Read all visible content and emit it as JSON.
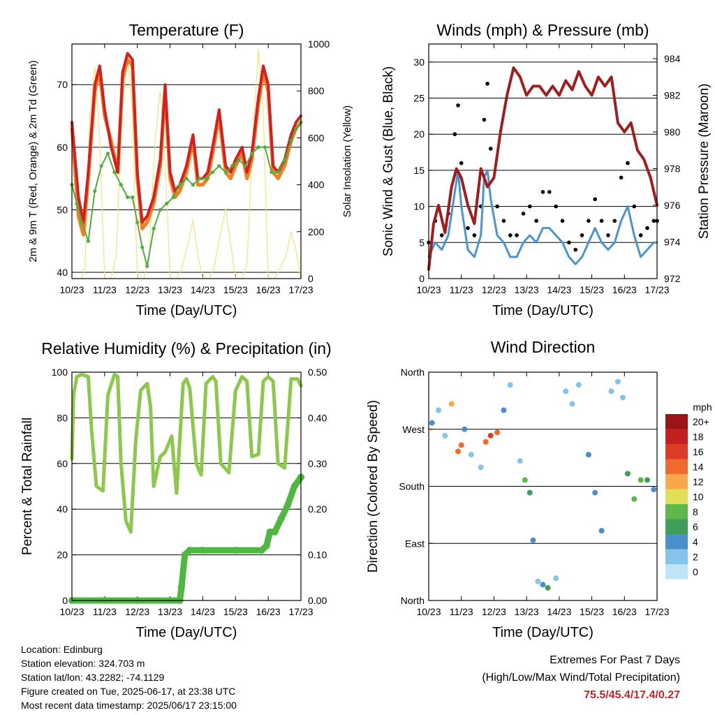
{
  "figure": {
    "time_ticks": [
      "10/23",
      "11/23",
      "12/23",
      "13/23",
      "14/23",
      "15/23",
      "16/23",
      "17/23"
    ],
    "time_label": "Time (Day/UTC)"
  },
  "colors": {
    "temp_2m": "#f08020",
    "temp_9m": "#d42020",
    "dewpoint": "#4fae3f",
    "solar": "#f7e27a",
    "gust": "#000000",
    "wind": "#4a94d0",
    "pressure": "#a01e1e",
    "rh": "#8cc84a",
    "precip": "#4fb841",
    "extremes_text": "#c0282b"
  },
  "chart_data": [
    {
      "id": "temperature",
      "type": "line",
      "title": "Temperature (F)",
      "xlabel": "Time (Day/UTC)",
      "ylabel": "2m & 9m T (Red, Orange) & 2m Td (Green)",
      "ylabel_right": "Solar Insolation (Yellow)",
      "x_ticks": [
        "10/23",
        "11/23",
        "12/23",
        "13/23",
        "14/23",
        "15/23",
        "16/23",
        "17/23"
      ],
      "y_ticks": [
        40,
        50,
        60,
        70
      ],
      "ylim": [
        39,
        76.5
      ],
      "y2_ticks": [
        0,
        200,
        400,
        600,
        800,
        1000
      ],
      "y2lim": [
        0,
        1000
      ],
      "grid": "horizontal",
      "series": [
        {
          "name": "9m T",
          "x": [
            0,
            0.1,
            0.2,
            0.35,
            0.5,
            0.7,
            0.85,
            1.0,
            1.2,
            1.4,
            1.55,
            1.7,
            1.85,
            2.0,
            2.15,
            2.3,
            2.5,
            2.7,
            2.85,
            3.0,
            3.15,
            3.3,
            3.5,
            3.7,
            3.85,
            4.0,
            4.15,
            4.3,
            4.5,
            4.7,
            4.85,
            5.0,
            5.2,
            5.35,
            5.5,
            5.7,
            5.85,
            6.0,
            6.15,
            6.3,
            6.5,
            6.7,
            6.85,
            7.0
          ],
          "y": [
            64,
            58,
            52,
            48,
            56,
            70,
            73,
            66,
            60,
            56,
            72,
            75,
            74,
            56,
            48,
            49,
            52,
            58,
            70,
            56,
            53,
            54,
            57,
            62,
            55,
            55,
            56,
            60,
            66,
            57,
            56,
            58,
            60,
            56,
            59,
            68,
            73,
            70,
            57,
            56,
            58,
            62,
            64,
            65
          ]
        },
        {
          "name": "2m T",
          "x": [
            0,
            0.1,
            0.2,
            0.35,
            0.5,
            0.7,
            0.85,
            1.0,
            1.2,
            1.4,
            1.55,
            1.7,
            1.85,
            2.0,
            2.15,
            2.3,
            2.5,
            2.7,
            2.85,
            3.0,
            3.15,
            3.3,
            3.5,
            3.7,
            3.85,
            4.0,
            4.15,
            4.3,
            4.5,
            4.7,
            4.85,
            5.0,
            5.2,
            5.35,
            5.5,
            5.7,
            5.85,
            6.0,
            6.15,
            6.3,
            6.5,
            6.7,
            6.85,
            7.0
          ],
          "y": [
            63,
            56,
            49,
            46,
            55,
            69,
            72,
            65,
            61,
            56,
            71,
            74,
            73,
            55,
            47,
            48,
            51,
            57,
            69,
            55,
            52,
            53,
            56,
            61,
            54,
            54,
            55,
            59,
            65,
            56,
            55,
            57,
            59,
            55,
            58,
            67,
            72,
            69,
            56,
            55,
            57,
            61,
            63,
            64
          ]
        },
        {
          "name": "2m Td",
          "x": [
            0,
            0.15,
            0.3,
            0.5,
            0.7,
            0.9,
            1.1,
            1.3,
            1.5,
            1.7,
            1.85,
            2.0,
            2.15,
            2.3,
            2.5,
            2.7,
            2.9,
            3.1,
            3.3,
            3.5,
            3.7,
            3.9,
            4.1,
            4.3,
            4.5,
            4.7,
            4.9,
            5.1,
            5.3,
            5.5,
            5.7,
            5.9,
            6.1,
            6.3,
            6.5,
            6.7,
            6.85,
            7.0
          ],
          "y": [
            54,
            51,
            48,
            45,
            53,
            57,
            59,
            56,
            54,
            52,
            52,
            48,
            44,
            41,
            47,
            50,
            51,
            52,
            54,
            55,
            54,
            55,
            55,
            56,
            57,
            56,
            57,
            58,
            57,
            59,
            60,
            60,
            56,
            56,
            58,
            61,
            63,
            64
          ]
        },
        {
          "name": "Solar Insolation",
          "axis": "right",
          "x": [
            0,
            0.1,
            0.2,
            0.3,
            0.4,
            0.55,
            0.7,
            0.85,
            1.0,
            1.1,
            1.2,
            1.35,
            1.55,
            1.7,
            1.85,
            2.0,
            2.1,
            2.2,
            2.35,
            2.55,
            2.7,
            2.85,
            3.0,
            3.1,
            3.2,
            3.35,
            3.55,
            3.7,
            3.85,
            4.0,
            4.1,
            4.2,
            4.35,
            4.55,
            4.7,
            4.85,
            5.0,
            5.1,
            5.2,
            5.35,
            5.55,
            5.7,
            5.85,
            6.0,
            6.1,
            6.2,
            6.35,
            6.55,
            6.7,
            6.85,
            7.0
          ],
          "y": [
            0,
            0,
            0,
            0,
            50,
            700,
            900,
            600,
            0,
            0,
            0,
            100,
            750,
            950,
            700,
            0,
            0,
            0,
            80,
            600,
            800,
            500,
            0,
            0,
            0,
            40,
            150,
            250,
            100,
            0,
            0,
            0,
            50,
            200,
            300,
            150,
            0,
            0,
            0,
            60,
            650,
            980,
            700,
            0,
            0,
            0,
            40,
            100,
            200,
            120,
            0
          ]
        }
      ]
    },
    {
      "id": "winds",
      "type": "scatter",
      "title": "Winds (mph) & Pressure (mb)",
      "xlabel": "Time (Day/UTC)",
      "ylabel": "Sonic Wind & Gust (Blue, Black)",
      "ylabel_right": "Station Pressure (Maroon)",
      "x_ticks": [
        "10/23",
        "11/23",
        "12/23",
        "13/23",
        "14/23",
        "15/23",
        "16/23",
        "17/23"
      ],
      "y_ticks": [
        0,
        5,
        10,
        15,
        20,
        25,
        30
      ],
      "ylim": [
        0,
        32.5
      ],
      "y2_ticks": [
        972,
        974,
        976,
        978,
        980,
        982,
        984
      ],
      "y2lim": [
        972,
        984.8
      ],
      "grid": "horizontal",
      "series": [
        {
          "name": "Gust",
          "x": [
            0,
            0.2,
            0.4,
            0.6,
            0.8,
            0.9,
            1.0,
            1.2,
            1.4,
            1.6,
            1.7,
            1.8,
            1.9,
            2.1,
            2.3,
            2.5,
            2.7,
            2.9,
            3.1,
            3.3,
            3.5,
            3.7,
            3.9,
            4.1,
            4.3,
            4.5,
            4.7,
            4.9,
            5.1,
            5.3,
            5.5,
            5.7,
            5.9,
            6.1,
            6.3,
            6.5,
            6.7,
            6.9,
            7.0
          ],
          "y": [
            5,
            8,
            6,
            9,
            20,
            24,
            16,
            7,
            6,
            10,
            22,
            27,
            18,
            10,
            8,
            6,
            6,
            9,
            10,
            8,
            12,
            12,
            10,
            8,
            5,
            4,
            6,
            8,
            11,
            8,
            6,
            8,
            14,
            16,
            10,
            6,
            7,
            8,
            8
          ]
        },
        {
          "name": "Sonic Wind",
          "x": [
            0,
            0.2,
            0.4,
            0.6,
            0.8,
            0.9,
            1.0,
            1.2,
            1.4,
            1.6,
            1.7,
            1.8,
            1.9,
            2.1,
            2.3,
            2.5,
            2.7,
            2.9,
            3.1,
            3.3,
            3.5,
            3.7,
            3.9,
            4.1,
            4.3,
            4.5,
            4.7,
            4.9,
            5.1,
            5.3,
            5.5,
            5.7,
            5.9,
            6.1,
            6.3,
            6.5,
            6.7,
            6.9,
            7.0
          ],
          "y": [
            3,
            5,
            4,
            6,
            12,
            15,
            10,
            4,
            3,
            6,
            14,
            15,
            11,
            6,
            5,
            3,
            3,
            5,
            6,
            5,
            7,
            7,
            6,
            5,
            3,
            2,
            3,
            5,
            7,
            5,
            4,
            5,
            8,
            10,
            6,
            3,
            4,
            5,
            5
          ]
        },
        {
          "name": "Station Pressure",
          "axis": "right",
          "x": [
            0,
            0.15,
            0.3,
            0.5,
            0.7,
            0.85,
            1.0,
            1.2,
            1.4,
            1.6,
            1.8,
            2.0,
            2.2,
            2.4,
            2.6,
            2.8,
            3.0,
            3.2,
            3.4,
            3.6,
            3.8,
            4.0,
            4.2,
            4.4,
            4.6,
            4.8,
            5.0,
            5.2,
            5.4,
            5.6,
            5.8,
            6.0,
            6.2,
            6.4,
            6.6,
            6.8,
            7.0
          ],
          "y": [
            972.5,
            975,
            976,
            974.5,
            977,
            978,
            977.5,
            976,
            975,
            978,
            977,
            977.5,
            980,
            982,
            983.5,
            983,
            982,
            982.5,
            982.5,
            982,
            982.5,
            982,
            982.8,
            982.3,
            983.3,
            982.5,
            982,
            983,
            982.5,
            983,
            980.5,
            980,
            980.5,
            979,
            978.5,
            977.5,
            976
          ]
        }
      ]
    },
    {
      "id": "humidity",
      "type": "line",
      "title": "Relative Humidity (%) & Precipitation (in)",
      "xlabel": "Time (Day/UTC)",
      "ylabel": "Percent & Total Rainfall",
      "x_ticks": [
        "10/23",
        "11/23",
        "12/23",
        "13/23",
        "14/23",
        "15/23",
        "16/23",
        "17/23"
      ],
      "y_ticks": [
        0,
        20,
        40,
        60,
        80,
        100
      ],
      "ylim": [
        0,
        100
      ],
      "y2_ticks": [
        "0.00",
        "0.10",
        "0.20",
        "0.30",
        "0.40",
        "0.50"
      ],
      "y2lim": [
        0,
        0.5
      ],
      "grid": "horizontal",
      "series": [
        {
          "name": "Relative Humidity",
          "x": [
            0,
            0.05,
            0.15,
            0.3,
            0.5,
            0.6,
            0.75,
            0.95,
            1.1,
            1.3,
            1.4,
            1.5,
            1.65,
            1.8,
            1.95,
            2.1,
            2.3,
            2.4,
            2.5,
            2.7,
            2.85,
            3.05,
            3.2,
            3.4,
            3.5,
            3.6,
            3.8,
            3.95,
            4.1,
            4.3,
            4.4,
            4.55,
            4.8,
            5.0,
            5.2,
            5.35,
            5.5,
            5.7,
            5.85,
            6.0,
            6.15,
            6.3,
            6.5,
            6.7,
            6.9,
            7.0
          ],
          "y": [
            62,
            90,
            98,
            99,
            98,
            75,
            50,
            48,
            90,
            99,
            98,
            60,
            35,
            30,
            70,
            92,
            95,
            85,
            50,
            63,
            65,
            72,
            47,
            95,
            97,
            93,
            60,
            55,
            95,
            98,
            96,
            60,
            56,
            92,
            98,
            96,
            63,
            64,
            96,
            98,
            96,
            60,
            58,
            97,
            97,
            94
          ]
        },
        {
          "name": "Total Precipitation",
          "axis": "right",
          "x": [
            0,
            1,
            2,
            3.3,
            3.35,
            3.45,
            3.6,
            4,
            5,
            5.8,
            5.95,
            6.05,
            6.2,
            6.4,
            6.6,
            6.8,
            7.0
          ],
          "y": [
            0,
            0,
            0,
            0,
            0.03,
            0.1,
            0.11,
            0.11,
            0.11,
            0.11,
            0.12,
            0.15,
            0.15,
            0.18,
            0.21,
            0.25,
            0.27
          ]
        }
      ]
    },
    {
      "id": "direction",
      "type": "scatter",
      "title": "Wind Direction",
      "xlabel": "Time (Day/UTC)",
      "ylabel": "Direction (Colored By Speed)",
      "x_ticks": [
        "10/23",
        "11/23",
        "12/23",
        "13/23",
        "14/23",
        "15/23",
        "16/23",
        "17/23"
      ],
      "y_ticks": [
        "North",
        "East",
        "South",
        "West",
        "North"
      ],
      "y_tick_values": [
        0,
        90,
        180,
        270,
        360
      ],
      "ylim": [
        0,
        360
      ],
      "grid": "horizontal",
      "colorbar": {
        "title": "mph",
        "labels": [
          "0",
          "2",
          "4",
          "6",
          "8",
          "10",
          "12",
          "14",
          "16",
          "18",
          "20+"
        ],
        "colors": [
          "#bfe3f7",
          "#86c3ea",
          "#4a8fc9",
          "#3f9e5a",
          "#5fb849",
          "#e2de57",
          "#f6a84a",
          "#ee6a2d",
          "#dc3d26",
          "#c3201e",
          "#9b1418"
        ]
      },
      "series": [
        {
          "name": "Direction",
          "x": [
            0.1,
            0.3,
            0.5,
            0.7,
            0.9,
            1.0,
            1.1,
            1.3,
            1.6,
            1.75,
            1.9,
            2.1,
            2.3,
            2.5,
            2.8,
            2.95,
            3.1,
            3.2,
            3.35,
            3.5,
            3.65,
            3.9,
            4.2,
            4.4,
            4.6,
            4.9,
            5.1,
            5.3,
            5.6,
            5.8,
            5.95,
            6.1,
            6.3,
            6.5,
            6.7,
            6.9
          ],
          "y": [
            280,
            300,
            260,
            310,
            235,
            245,
            270,
            230,
            210,
            250,
            260,
            265,
            300,
            340,
            220,
            190,
            170,
            95,
            30,
            25,
            20,
            35,
            330,
            310,
            340,
            230,
            170,
            110,
            330,
            345,
            320,
            200,
            160,
            190,
            190,
            175
          ],
          "speed": [
            4,
            2,
            3,
            12,
            14,
            15,
            4,
            3,
            2,
            15,
            16,
            14,
            4,
            3,
            2,
            8,
            6,
            4,
            3,
            4,
            7,
            2,
            2,
            2,
            3,
            4,
            4,
            4,
            2,
            3,
            3,
            7,
            8,
            9,
            7,
            5
          ]
        }
      ]
    }
  ],
  "footer": {
    "location": "Location: Edinburg",
    "elevation": "Station elevation: 324.703 m",
    "latlon": "Station lat/lon: 43.2282; -74.1129",
    "created": "Figure created on Tue, 2025-06-17, at 23:38 UTC",
    "recent": "Most recent data timestamp: 2025/06/17 23:15:00"
  },
  "extremes": {
    "title": "Extremes For Past 7 Days",
    "subtitle": "(High/Low/Max Wind/Total Precipitation)",
    "values": "75.5/45.4/17.4/0.27"
  }
}
